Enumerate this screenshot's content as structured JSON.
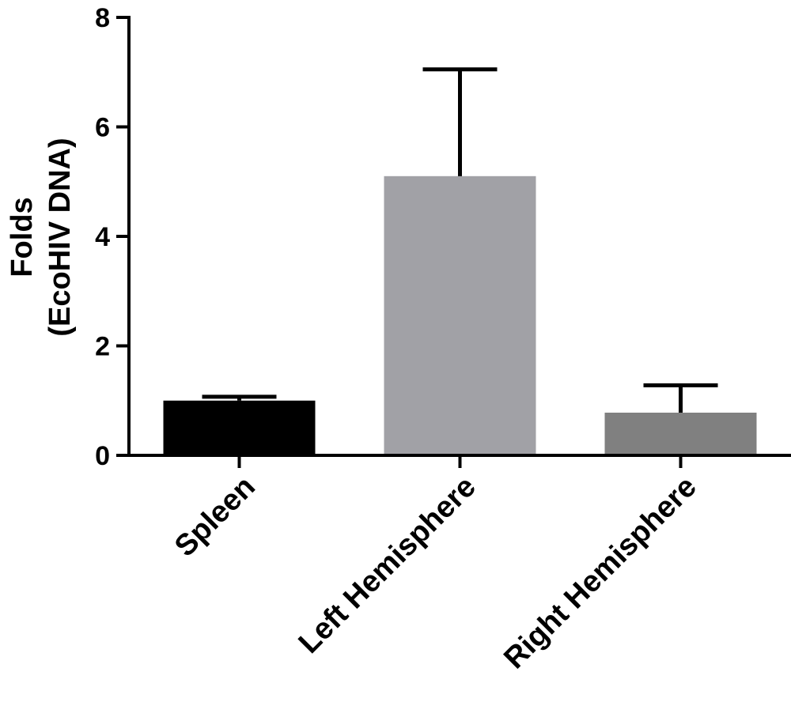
{
  "chart_data": {
    "type": "bar",
    "title": "",
    "xlabel": "",
    "ylabel_line1": "Folds",
    "ylabel_line2": "(EcoHIV DNA)",
    "ylim": [
      0,
      8
    ],
    "yticks": [
      0,
      2,
      4,
      6,
      8
    ],
    "categories": [
      "Spleen",
      "Left Hemisphere",
      "Right Hemisphere"
    ],
    "values": [
      1.0,
      5.1,
      0.78
    ],
    "error_upper": [
      0.07,
      1.95,
      0.5
    ],
    "colors": [
      "#000000",
      "#a1a1a6",
      "#808080"
    ],
    "grid": false,
    "legend": "none"
  }
}
